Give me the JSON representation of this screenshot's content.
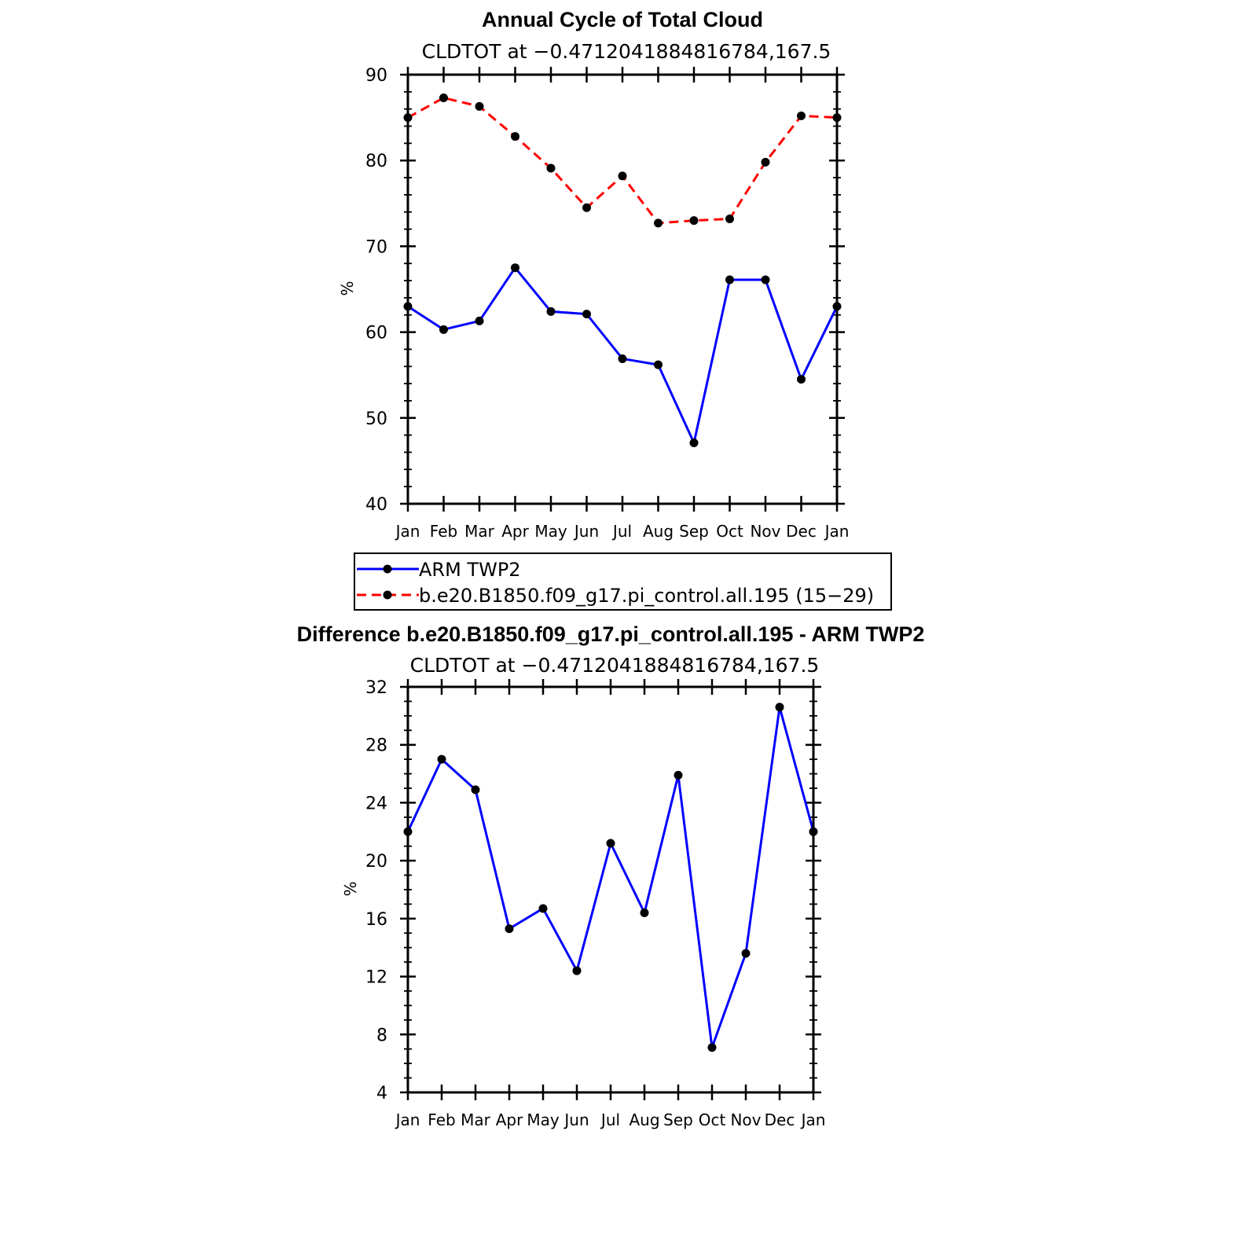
{
  "chart_data": [
    {
      "type": "line",
      "title": "Annual Cycle of Total Cloud",
      "subtitle": "CLDTOT at −0.4712041884816784,167.5",
      "xlabel": "",
      "ylabel": "%",
      "categories": [
        "Jan",
        "Feb",
        "Mar",
        "Apr",
        "May",
        "Jun",
        "Jul",
        "Aug",
        "Sep",
        "Oct",
        "Nov",
        "Dec",
        "Jan"
      ],
      "ylim": [
        40,
        90
      ],
      "yticks": [
        40,
        50,
        60,
        70,
        80,
        90
      ],
      "series": [
        {
          "name": "ARM TWP2",
          "color": "#0000ff",
          "dash": "solid",
          "values": [
            63.0,
            60.3,
            61.3,
            67.5,
            62.4,
            62.1,
            56.9,
            56.2,
            47.1,
            66.1,
            66.1,
            54.5,
            63.0
          ]
        },
        {
          "name": "b.e20.B1850.f09_g17.pi_control.all.195 (15−29)",
          "color": "#ff0000",
          "dash": "dashed",
          "values": [
            85.0,
            87.3,
            86.3,
            82.8,
            79.1,
            74.5,
            78.2,
            72.7,
            73.0,
            73.2,
            79.8,
            85.2,
            85.0
          ]
        }
      ],
      "legend": "below"
    },
    {
      "type": "line",
      "title": "Difference b.e20.B1850.f09_g17.pi_control.all.195 - ARM TWP2",
      "subtitle": "CLDTOT at −0.4712041884816784,167.5",
      "xlabel": "",
      "ylabel": "%",
      "categories": [
        "Jan",
        "Feb",
        "Mar",
        "Apr",
        "May",
        "Jun",
        "Jul",
        "Aug",
        "Sep",
        "Oct",
        "Nov",
        "Dec",
        "Jan"
      ],
      "ylim": [
        4,
        32
      ],
      "yticks": [
        4,
        8,
        12,
        16,
        20,
        24,
        28,
        32
      ],
      "series": [
        {
          "name": "Difference",
          "color": "#0000ff",
          "dash": "solid",
          "values": [
            22.0,
            27.0,
            24.9,
            15.3,
            16.7,
            12.4,
            21.2,
            16.4,
            25.9,
            7.1,
            13.6,
            30.6,
            22.0
          ]
        }
      ]
    }
  ]
}
